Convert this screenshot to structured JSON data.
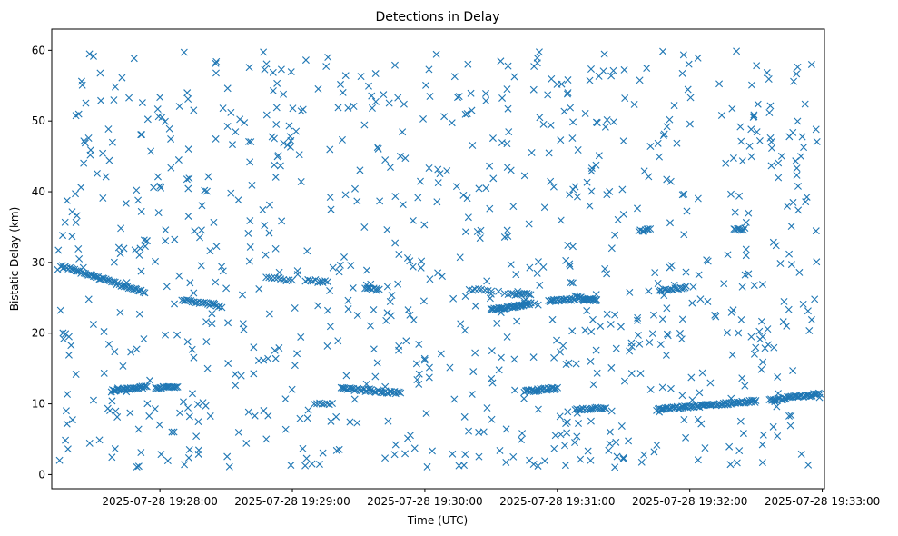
{
  "chart_data": {
    "type": "scatter",
    "title": "Detections in Delay",
    "xlabel": "Time (UTC)",
    "ylabel": "Bistatic Delay (km)",
    "x_ticks": [
      "2025-07-28 19:28:00",
      "2025-07-28 19:29:00",
      "2025-07-28 19:30:00",
      "2025-07-28 19:31:00",
      "2025-07-28 19:32:00",
      "2025-07-28 19:33:00"
    ],
    "y_ticks": [
      "0",
      "10",
      "20",
      "30",
      "40",
      "50",
      "60"
    ],
    "xlim": [
      "2025-07-28 19:27:11",
      "2025-07-28 19:33:01"
    ],
    "ylim": [
      -2,
      63
    ],
    "marker": "x",
    "color": "#1f77b4",
    "grid": false,
    "tracks": [
      {
        "start": "2025-07-28 19:27:15",
        "end": "2025-07-28 19:27:53",
        "y_start": 29.5,
        "y_end": 25.8,
        "points": 55
      },
      {
        "start": "2025-07-28 19:27:38",
        "end": "2025-07-28 19:27:54",
        "y_start": 11.8,
        "y_end": 12.4,
        "points": 30
      },
      {
        "start": "2025-07-28 19:27:58",
        "end": "2025-07-28 19:28:08",
        "y_start": 12.2,
        "y_end": 12.5,
        "points": 16
      },
      {
        "start": "2025-07-28 19:28:10",
        "end": "2025-07-28 19:28:28",
        "y_start": 24.8,
        "y_end": 23.8,
        "points": 24
      },
      {
        "start": "2025-07-28 19:28:48",
        "end": "2025-07-28 19:29:00",
        "y_start": 27.8,
        "y_end": 27.4,
        "points": 10
      },
      {
        "start": "2025-07-28 19:29:06",
        "end": "2025-07-28 19:29:16",
        "y_start": 27.5,
        "y_end": 27.2,
        "points": 10
      },
      {
        "start": "2025-07-28 19:29:10",
        "end": "2025-07-28 19:29:18",
        "y_start": 10.0,
        "y_end": 9.9,
        "points": 8
      },
      {
        "start": "2025-07-28 19:29:22",
        "end": "2025-07-28 19:29:49",
        "y_start": 12.2,
        "y_end": 11.5,
        "points": 40
      },
      {
        "start": "2025-07-28 19:29:33",
        "end": "2025-07-28 19:29:38",
        "y_start": 26.3,
        "y_end": 26.2,
        "points": 6
      },
      {
        "start": "2025-07-28 19:30:20",
        "end": "2025-07-28 19:30:30",
        "y_start": 26.2,
        "y_end": 26.0,
        "points": 8
      },
      {
        "start": "2025-07-28 19:30:30",
        "end": "2025-07-28 19:30:48",
        "y_start": 23.3,
        "y_end": 24.2,
        "points": 38
      },
      {
        "start": "2025-07-28 19:30:40",
        "end": "2025-07-28 19:30:48",
        "y_start": 25.5,
        "y_end": 25.5,
        "points": 10
      },
      {
        "start": "2025-07-28 19:30:45",
        "end": "2025-07-28 19:31:00",
        "y_start": 11.8,
        "y_end": 12.2,
        "points": 30
      },
      {
        "start": "2025-07-28 19:30:56",
        "end": "2025-07-28 19:31:08",
        "y_start": 24.5,
        "y_end": 24.8,
        "points": 22
      },
      {
        "start": "2025-07-28 19:31:09",
        "end": "2025-07-28 19:31:18",
        "y_start": 25.0,
        "y_end": 24.6,
        "points": 22
      },
      {
        "start": "2025-07-28 19:31:08",
        "end": "2025-07-28 19:31:22",
        "y_start": 9.2,
        "y_end": 9.5,
        "points": 20
      },
      {
        "start": "2025-07-28 19:31:37",
        "end": "2025-07-28 19:31:42",
        "y_start": 34.5,
        "y_end": 34.6,
        "points": 8
      },
      {
        "start": "2025-07-28 19:31:46",
        "end": "2025-07-28 19:31:58",
        "y_start": 26.0,
        "y_end": 26.4,
        "points": 16
      },
      {
        "start": "2025-07-28 19:31:45",
        "end": "2025-07-28 19:32:30",
        "y_start": 9.2,
        "y_end": 10.4,
        "points": 80
      },
      {
        "start": "2025-07-28 19:32:20",
        "end": "2025-07-28 19:32:25",
        "y_start": 34.6,
        "y_end": 34.7,
        "points": 8
      },
      {
        "start": "2025-07-28 19:32:36",
        "end": "2025-07-28 19:32:59",
        "y_start": 10.5,
        "y_end": 11.4,
        "points": 40
      }
    ],
    "clutter": {
      "count": 900,
      "y_range": [
        1,
        60
      ],
      "time_range": [
        "2025-07-28 19:27:13",
        "2025-07-28 19:32:59"
      ]
    }
  }
}
